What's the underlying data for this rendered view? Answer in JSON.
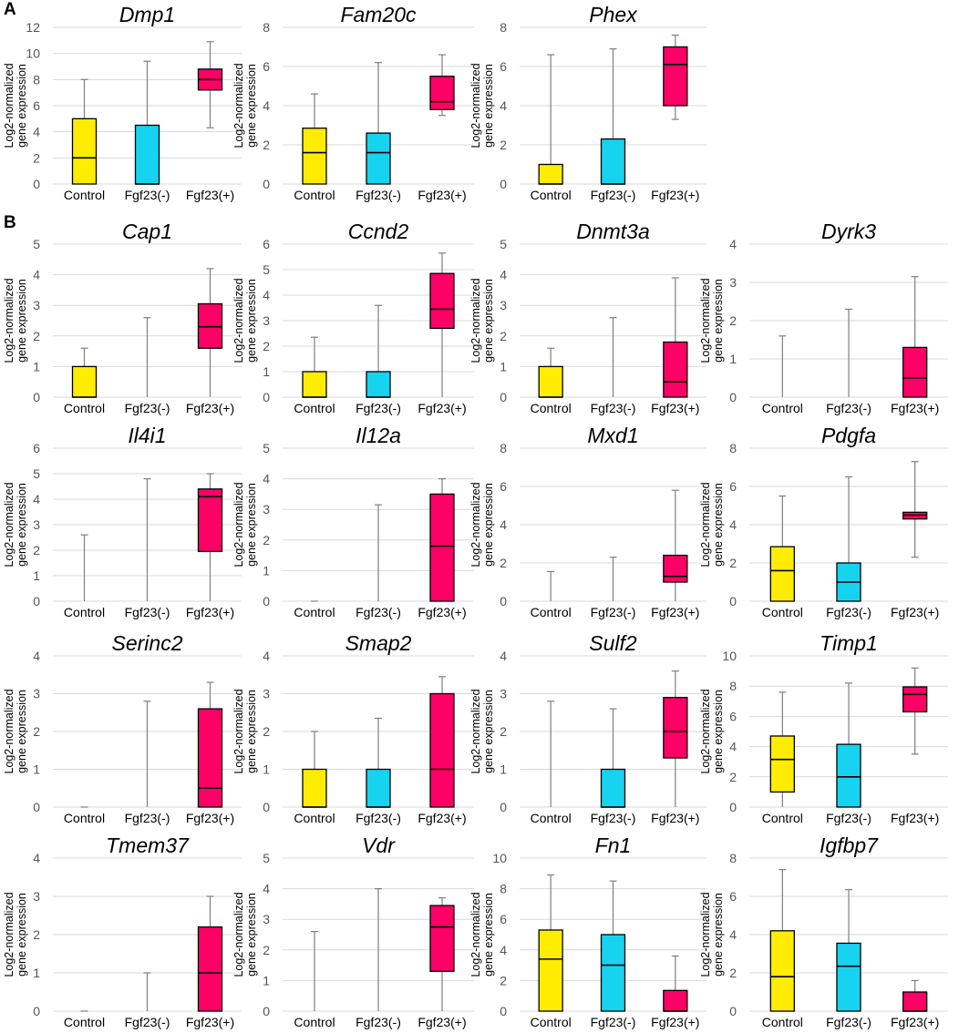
{
  "figure": {
    "panel_labels": [
      "A",
      "B"
    ]
  },
  "y_axis_label_line1": "Log2-normalized",
  "y_axis_label_line2": "gene expression",
  "group_colors": {
    "Control": "#ffec00",
    "Fgf23(-)": "#16d3f0",
    "Fgf23(+)": "#ff0066"
  },
  "chart_data": [
    {
      "type": "box",
      "panel": "A",
      "title": "Dmp1",
      "categories": [
        "Control",
        "Fgf23(-)",
        "Fgf23(+)"
      ],
      "ylim": [
        0,
        12
      ],
      "yticks": [
        0,
        2,
        4,
        6,
        8,
        10,
        12
      ],
      "boxes": [
        {
          "min": 0,
          "q1": 0,
          "median": 2,
          "q3": 5,
          "max": 8
        },
        {
          "min": 0,
          "q1": 0,
          "median": 0,
          "q3": 4.5,
          "max": 9.4
        },
        {
          "min": 4.3,
          "q1": 7.2,
          "median": 8,
          "q3": 8.8,
          "max": 10.9
        }
      ]
    },
    {
      "type": "box",
      "panel": "A",
      "title": "Fam20c",
      "categories": [
        "Control",
        "Fgf23(-)",
        "Fgf23(+)"
      ],
      "ylim": [
        0,
        8
      ],
      "yticks": [
        0,
        2,
        4,
        6,
        8
      ],
      "boxes": [
        {
          "min": 0,
          "q1": 0,
          "median": 1.6,
          "q3": 2.85,
          "max": 4.6
        },
        {
          "min": 0,
          "q1": 0,
          "median": 1.6,
          "q3": 2.6,
          "max": 6.2
        },
        {
          "min": 3.5,
          "q1": 3.8,
          "median": 4.2,
          "q3": 5.5,
          "max": 6.6
        }
      ]
    },
    {
      "type": "box",
      "panel": "A",
      "title": "Phex",
      "categories": [
        "Control",
        "Fgf23(-)",
        "Fgf23(+)"
      ],
      "ylim": [
        0,
        8
      ],
      "yticks": [
        0,
        2,
        4,
        6,
        8
      ],
      "boxes": [
        {
          "min": 0,
          "q1": 0,
          "median": 0,
          "q3": 1,
          "max": 6.6
        },
        {
          "min": 0,
          "q1": 0,
          "median": 0,
          "q3": 2.3,
          "max": 6.9
        },
        {
          "min": 3.3,
          "q1": 4,
          "median": 6.1,
          "q3": 7,
          "max": 7.6
        }
      ]
    },
    {
      "type": "box",
      "panel": "B",
      "title": "Cap1",
      "categories": [
        "Control",
        "Fgf23(-)",
        "Fgf23(+)"
      ],
      "ylim": [
        0,
        5
      ],
      "yticks": [
        0,
        1,
        2,
        3,
        4,
        5
      ],
      "boxes": [
        {
          "min": 0,
          "q1": 0,
          "median": 0,
          "q3": 1,
          "max": 1.6
        },
        {
          "min": 0,
          "q1": 0,
          "median": 0,
          "q3": 0,
          "max": 2.6
        },
        {
          "min": 0,
          "q1": 1.6,
          "median": 2.3,
          "q3": 3.05,
          "max": 4.2
        }
      ]
    },
    {
      "type": "box",
      "panel": "B",
      "title": "Ccnd2",
      "categories": [
        "Control",
        "Fgf23(-)",
        "Fgf23(+)"
      ],
      "ylim": [
        0,
        6
      ],
      "yticks": [
        0,
        1,
        2,
        3,
        4,
        5,
        6
      ],
      "boxes": [
        {
          "min": 0,
          "q1": 0,
          "median": 0,
          "q3": 1,
          "max": 2.35
        },
        {
          "min": 0,
          "q1": 0,
          "median": 0,
          "q3": 1,
          "max": 3.6
        },
        {
          "min": 0,
          "q1": 2.7,
          "median": 3.45,
          "q3": 4.85,
          "max": 5.65
        }
      ]
    },
    {
      "type": "box",
      "panel": "B",
      "title": "Dnmt3a",
      "categories": [
        "Control",
        "Fgf23(-)",
        "Fgf23(+)"
      ],
      "ylim": [
        0,
        5
      ],
      "yticks": [
        0,
        1,
        2,
        3,
        4,
        5
      ],
      "boxes": [
        {
          "min": 0,
          "q1": 0,
          "median": 0,
          "q3": 1,
          "max": 1.6
        },
        {
          "min": 0,
          "q1": 0,
          "median": 0,
          "q3": 0,
          "max": 2.6
        },
        {
          "min": 0,
          "q1": 0,
          "median": 0.5,
          "q3": 1.8,
          "max": 3.9
        }
      ]
    },
    {
      "type": "box",
      "panel": "B",
      "title": "Dyrk3",
      "categories": [
        "Control",
        "Fgf23(-)",
        "Fgf23(+)"
      ],
      "ylim": [
        0,
        4
      ],
      "yticks": [
        0,
        1,
        2,
        3,
        4
      ],
      "boxes": [
        {
          "min": 0,
          "q1": 0,
          "median": 0,
          "q3": 0,
          "max": 1.6
        },
        {
          "min": 0,
          "q1": 0,
          "median": 0,
          "q3": 0,
          "max": 2.3
        },
        {
          "min": 0,
          "q1": 0,
          "median": 0.5,
          "q3": 1.3,
          "max": 3.15
        }
      ]
    },
    {
      "type": "box",
      "panel": "B",
      "title": "Il4i1",
      "categories": [
        "Control",
        "Fgf23(-)",
        "Fgf23(+)"
      ],
      "ylim": [
        0,
        6
      ],
      "yticks": [
        0,
        1,
        2,
        3,
        4,
        5,
        6
      ],
      "boxes": [
        {
          "min": 0,
          "q1": 0,
          "median": 0,
          "q3": 0,
          "max": 2.6
        },
        {
          "min": 0,
          "q1": 0,
          "median": 0,
          "q3": 0,
          "max": 4.8
        },
        {
          "min": 0,
          "q1": 1.95,
          "median": 4.1,
          "q3": 4.4,
          "max": 5
        }
      ]
    },
    {
      "type": "box",
      "panel": "B",
      "title": "Il12a",
      "categories": [
        "Control",
        "Fgf23(-)",
        "Fgf23(+)"
      ],
      "ylim": [
        0,
        5
      ],
      "yticks": [
        0,
        1,
        2,
        3,
        4,
        5
      ],
      "boxes": [
        {
          "min": 0,
          "q1": 0,
          "median": 0,
          "q3": 0,
          "max": 0
        },
        {
          "min": 0,
          "q1": 0,
          "median": 0,
          "q3": 0,
          "max": 3.15
        },
        {
          "min": 0,
          "q1": 0,
          "median": 1.8,
          "q3": 3.5,
          "max": 4
        }
      ]
    },
    {
      "type": "box",
      "panel": "B",
      "title": "Mxd1",
      "categories": [
        "Control",
        "Fgf23(-)",
        "Fgf23(+)"
      ],
      "ylim": [
        0,
        8
      ],
      "yticks": [
        0,
        2,
        4,
        6,
        8
      ],
      "boxes": [
        {
          "min": 0,
          "q1": 0,
          "median": 0,
          "q3": 0,
          "max": 1.55
        },
        {
          "min": 0,
          "q1": 0,
          "median": 0,
          "q3": 0,
          "max": 2.3
        },
        {
          "min": 0,
          "q1": 1,
          "median": 1.3,
          "q3": 2.4,
          "max": 5.8
        }
      ]
    },
    {
      "type": "box",
      "panel": "B",
      "title": "Pdgfa",
      "categories": [
        "Control",
        "Fgf23(-)",
        "Fgf23(+)"
      ],
      "ylim": [
        0,
        8
      ],
      "yticks": [
        0,
        2,
        4,
        6,
        8
      ],
      "boxes": [
        {
          "min": 0,
          "q1": 0,
          "median": 1.6,
          "q3": 2.85,
          "max": 5.5
        },
        {
          "min": 0,
          "q1": 0,
          "median": 1,
          "q3": 2,
          "max": 6.5
        },
        {
          "min": 2.3,
          "q1": 4.3,
          "median": 4.5,
          "q3": 4.65,
          "max": 7.3
        }
      ]
    },
    {
      "type": "box",
      "panel": "B",
      "title": "Serinc2",
      "categories": [
        "Control",
        "Fgf23(-)",
        "Fgf23(+)"
      ],
      "ylim": [
        0,
        4
      ],
      "yticks": [
        0,
        1,
        2,
        3,
        4
      ],
      "boxes": [
        {
          "min": 0,
          "q1": 0,
          "median": 0,
          "q3": 0,
          "max": 0
        },
        {
          "min": 0,
          "q1": 0,
          "median": 0,
          "q3": 0,
          "max": 2.8
        },
        {
          "min": 0,
          "q1": 0,
          "median": 0.5,
          "q3": 2.6,
          "max": 3.3
        }
      ]
    },
    {
      "type": "box",
      "panel": "B",
      "title": "Smap2",
      "categories": [
        "Control",
        "Fgf23(-)",
        "Fgf23(+)"
      ],
      "ylim": [
        0,
        4
      ],
      "yticks": [
        0,
        1,
        2,
        3,
        4
      ],
      "boxes": [
        {
          "min": 0,
          "q1": 0,
          "median": 0,
          "q3": 1,
          "max": 2
        },
        {
          "min": 0,
          "q1": 0,
          "median": 0,
          "q3": 1,
          "max": 2.35
        },
        {
          "min": 0,
          "q1": 0,
          "median": 1,
          "q3": 3,
          "max": 3.45
        }
      ]
    },
    {
      "type": "box",
      "panel": "B",
      "title": "Sulf2",
      "categories": [
        "Control",
        "Fgf23(-)",
        "Fgf23(+)"
      ],
      "ylim": [
        0,
        4
      ],
      "yticks": [
        0,
        1,
        2,
        3,
        4
      ],
      "boxes": [
        {
          "min": 0,
          "q1": 0,
          "median": 0,
          "q3": 0,
          "max": 2.8
        },
        {
          "min": 0,
          "q1": 0,
          "median": 0,
          "q3": 1,
          "max": 2.6
        },
        {
          "min": 0,
          "q1": 1.3,
          "median": 2,
          "q3": 2.9,
          "max": 3.6
        }
      ]
    },
    {
      "type": "box",
      "panel": "B",
      "title": "Timp1",
      "categories": [
        "Control",
        "Fgf23(-)",
        "Fgf23(+)"
      ],
      "ylim": [
        0,
        10
      ],
      "yticks": [
        0,
        2,
        4,
        6,
        8,
        10
      ],
      "boxes": [
        {
          "min": 0,
          "q1": 1,
          "median": 3.15,
          "q3": 4.7,
          "max": 7.6
        },
        {
          "min": 0,
          "q1": 0,
          "median": 2,
          "q3": 4.15,
          "max": 8.2
        },
        {
          "min": 3.5,
          "q1": 6.3,
          "median": 7.45,
          "q3": 7.95,
          "max": 9.2
        }
      ]
    },
    {
      "type": "box",
      "panel": "B",
      "title": "Tmem37",
      "categories": [
        "Control",
        "Fgf23(-)",
        "Fgf23(+)"
      ],
      "ylim": [
        0,
        4
      ],
      "yticks": [
        0,
        1,
        2,
        3,
        4
      ],
      "boxes": [
        {
          "min": 0,
          "q1": 0,
          "median": 0,
          "q3": 0,
          "max": 0
        },
        {
          "min": 0,
          "q1": 0,
          "median": 0,
          "q3": 0,
          "max": 1
        },
        {
          "min": 0,
          "q1": 0,
          "median": 1,
          "q3": 2.2,
          "max": 3
        }
      ]
    },
    {
      "type": "box",
      "panel": "B",
      "title": "Vdr",
      "categories": [
        "Control",
        "Fgf23(-)",
        "Fgf23(+)"
      ],
      "ylim": [
        0,
        5
      ],
      "yticks": [
        0,
        1,
        2,
        3,
        4,
        5
      ],
      "boxes": [
        {
          "min": 0,
          "q1": 0,
          "median": 0,
          "q3": 0,
          "max": 2.6
        },
        {
          "min": 0,
          "q1": 0,
          "median": 0,
          "q3": 0,
          "max": 4
        },
        {
          "min": 0,
          "q1": 1.3,
          "median": 2.75,
          "q3": 3.45,
          "max": 3.7
        }
      ]
    },
    {
      "type": "box",
      "panel": "B",
      "title": "Fn1",
      "categories": [
        "Control",
        "Fgf23(-)",
        "Fgf23(+)"
      ],
      "ylim": [
        0,
        10
      ],
      "yticks": [
        0,
        2,
        4,
        6,
        8,
        10
      ],
      "boxes": [
        {
          "min": 0,
          "q1": 0,
          "median": 3.4,
          "q3": 5.3,
          "max": 8.9
        },
        {
          "min": 0,
          "q1": 0,
          "median": 3,
          "q3": 5,
          "max": 8.5
        },
        {
          "min": 0,
          "q1": 0,
          "median": 0,
          "q3": 1.35,
          "max": 3.6
        }
      ]
    },
    {
      "type": "box",
      "panel": "B",
      "title": "Igfbp7",
      "categories": [
        "Control",
        "Fgf23(-)",
        "Fgf23(+)"
      ],
      "ylim": [
        0,
        8
      ],
      "yticks": [
        0,
        2,
        4,
        6,
        8
      ],
      "boxes": [
        {
          "min": 0,
          "q1": 0,
          "median": 1.8,
          "q3": 4.2,
          "max": 7.4
        },
        {
          "min": 0,
          "q1": 0,
          "median": 2.35,
          "q3": 3.55,
          "max": 6.35
        },
        {
          "min": 0,
          "q1": 0,
          "median": 0,
          "q3": 1,
          "max": 1.6
        }
      ]
    }
  ]
}
